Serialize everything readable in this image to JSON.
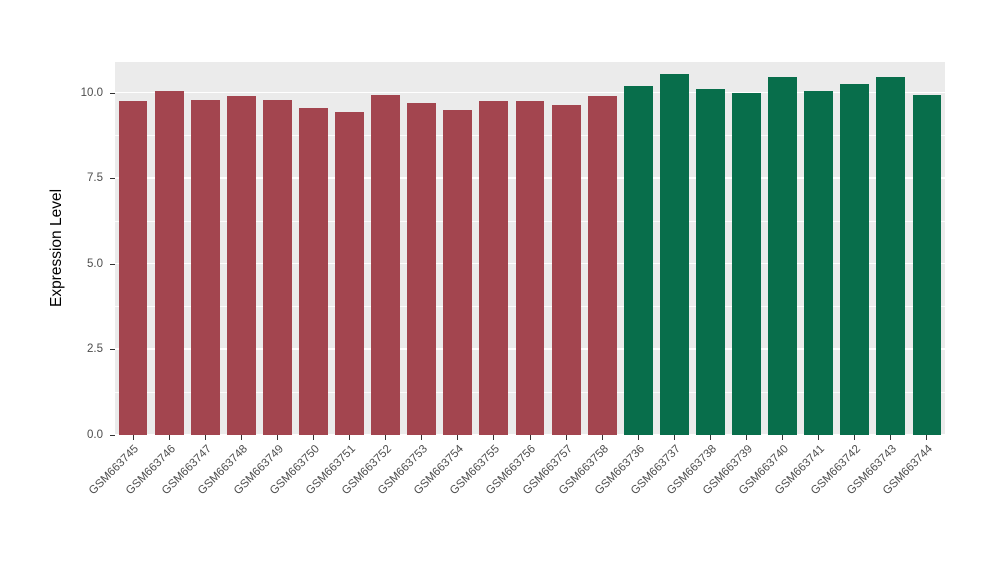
{
  "chart_data": {
    "type": "bar",
    "title": "",
    "xlabel": "",
    "ylabel": "Expression Level",
    "categories": [
      "GSM663745",
      "GSM663746",
      "GSM663747",
      "GSM663748",
      "GSM663749",
      "GSM663750",
      "GSM663751",
      "GSM663752",
      "GSM663753",
      "GSM663754",
      "GSM663755",
      "GSM663756",
      "GSM663757",
      "GSM663758",
      "GSM663736",
      "GSM663737",
      "GSM663738",
      "GSM663739",
      "GSM663740",
      "GSM663741",
      "GSM663742",
      "GSM663743",
      "GSM663744"
    ],
    "values": [
      9.75,
      10.05,
      9.8,
      9.9,
      9.8,
      9.55,
      9.45,
      9.95,
      9.7,
      9.5,
      9.75,
      9.75,
      9.65,
      9.9,
      10.2,
      10.55,
      10.1,
      10.0,
      10.45,
      10.05,
      10.25,
      10.45,
      9.95
    ],
    "bar_groups": [
      "group1",
      "group1",
      "group1",
      "group1",
      "group1",
      "group1",
      "group1",
      "group1",
      "group1",
      "group1",
      "group1",
      "group1",
      "group1",
      "group1",
      "group2",
      "group2",
      "group2",
      "group2",
      "group2",
      "group2",
      "group2",
      "group2",
      "group2"
    ],
    "group_colors": {
      "group1": "#A3454F",
      "group2": "#086E4B"
    },
    "ylim": [
      0,
      10.9
    ],
    "yticks": [
      0.0,
      2.5,
      5.0,
      7.5,
      10.0
    ],
    "ytick_labels": [
      "0.0",
      "2.5",
      "5.0",
      "7.5",
      "10.0"
    ],
    "minor_ticks": [
      1.25,
      3.75,
      6.25,
      8.75
    ],
    "grid": true,
    "legend": "none",
    "panel_bg": "#EBEBEB",
    "grid_color": "#FFFFFF",
    "axis_text_color": "#4D4D4D",
    "bar_width_fraction": 0.8
  }
}
